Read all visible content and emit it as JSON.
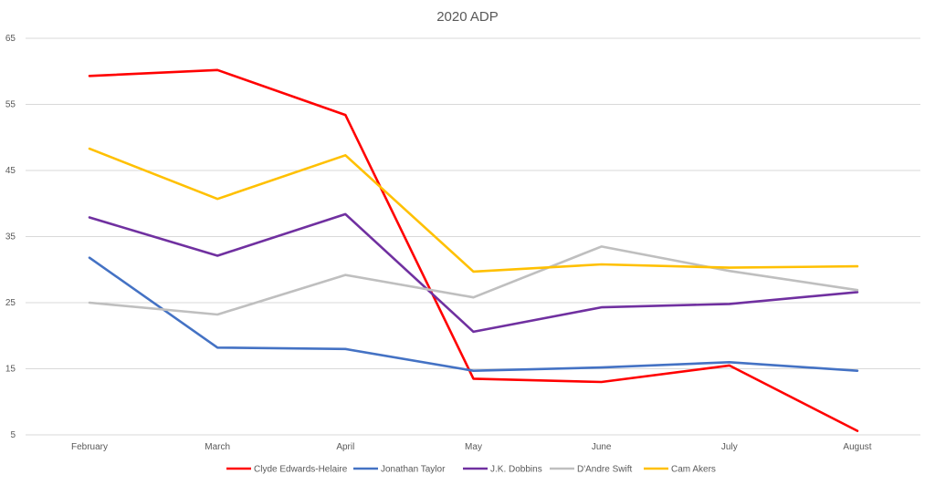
{
  "chart_data": {
    "type": "line",
    "title": "2020 ADP",
    "xlabel": "",
    "ylabel": "",
    "categories": [
      "February",
      "March",
      "April",
      "May",
      "June",
      "July",
      "August"
    ],
    "ylim": [
      5,
      65
    ],
    "yticks": [
      5,
      15,
      25,
      35,
      45,
      55,
      65
    ],
    "grid": true,
    "legend_position": "bottom",
    "series": [
      {
        "name": "Clyde Edwards-Helaire",
        "color": "#ff0000",
        "values": [
          59.3,
          60.2,
          53.4,
          13.5,
          13.0,
          15.5,
          5.6
        ]
      },
      {
        "name": "Jonathan Taylor",
        "color": "#4472c4",
        "values": [
          31.8,
          18.2,
          18.0,
          14.7,
          15.2,
          16.0,
          14.7
        ]
      },
      {
        "name": "J.K. Dobbins",
        "color": "#7030a0",
        "values": [
          37.9,
          32.1,
          38.4,
          20.6,
          24.3,
          24.8,
          26.6
        ]
      },
      {
        "name": "D'Andre Swift",
        "color": "#bfbfbf",
        "values": [
          25.0,
          23.2,
          29.2,
          25.8,
          33.5,
          29.8,
          26.9
        ]
      },
      {
        "name": "Cam Akers",
        "color": "#ffc000",
        "values": [
          48.3,
          40.7,
          47.3,
          29.7,
          30.8,
          30.3,
          30.5
        ]
      }
    ]
  }
}
